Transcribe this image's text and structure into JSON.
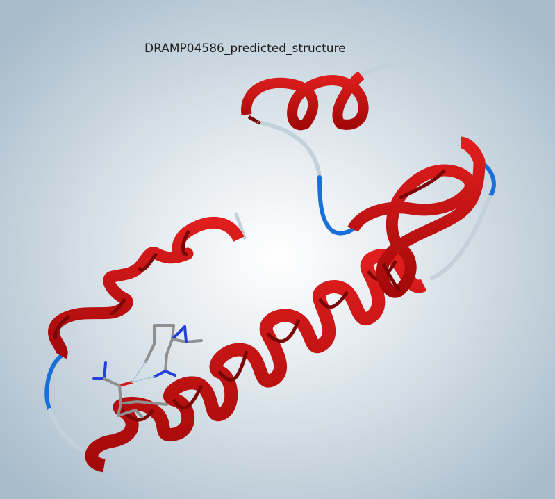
{
  "viewer": {
    "title": "DRAMP04586_predicted_structure",
    "colors": {
      "helix": "#c80d0d",
      "helix_dark": "#7a0606",
      "turn": "#1a6fd8",
      "coil": "#c2d1da",
      "carbon": "#8f8f8f",
      "nitrogen": "#2340d8",
      "oxygen": "#d41818",
      "hbond": "#a9c4d8"
    },
    "legend": []
  }
}
